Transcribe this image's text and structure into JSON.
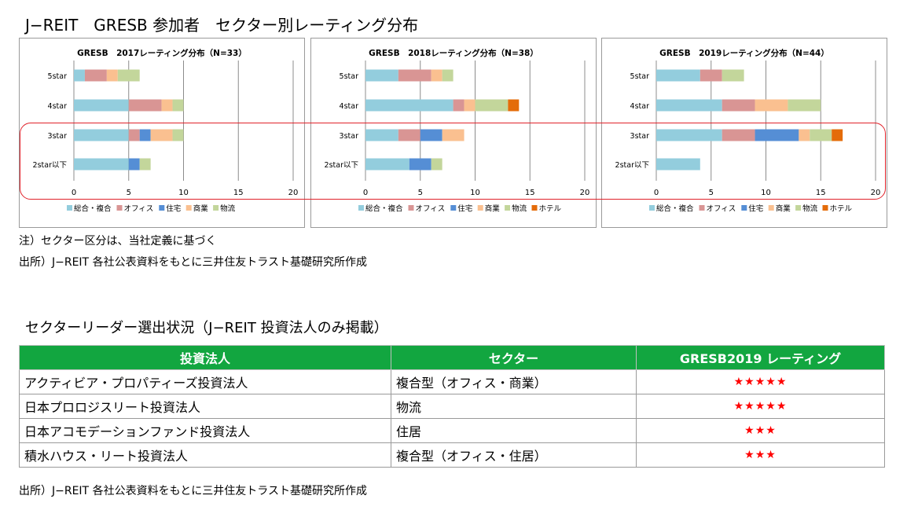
{
  "page": {
    "title": "J−REIT　GRESB 参加者　セクター別レーティング分布",
    "note": "注）セクター区分は、当社定義に基づく",
    "source1": "出所）J−REIT 各社公表資料をもとに三井住友トラスト基礎研究所作成",
    "table_title": "セクターリーダー選出状況（J−REIT 投資法人のみ掲載）",
    "source2": "出所）J−REIT 各社公表資料をもとに三井住友トラスト基礎研究所作成"
  },
  "colors": {
    "総合・複合": "#93cddd",
    "オフィス": "#d99594",
    "住宅": "#558ed5",
    "商業": "#fac090",
    "物流": "#c3d69b",
    "ホテル": "#e46c0a"
  },
  "chart_data": [
    {
      "type": "bar",
      "orientation": "horizontal",
      "stacked": true,
      "title": "GRESB　2017レーティング分布（N=33）",
      "categories": [
        "5star",
        "4star",
        "3star",
        "2star以下"
      ],
      "xlim": [
        0,
        20
      ],
      "xticks": [
        0,
        5,
        10,
        15,
        20
      ],
      "grid": true,
      "legend": "bottom",
      "series": [
        {
          "name": "総合・複合",
          "values": [
            1,
            5,
            5,
            5
          ]
        },
        {
          "name": "オフィス",
          "values": [
            2,
            3,
            1,
            0
          ]
        },
        {
          "name": "住宅",
          "values": [
            0,
            0,
            1,
            1
          ]
        },
        {
          "name": "商業",
          "values": [
            1,
            1,
            2,
            0
          ]
        },
        {
          "name": "物流",
          "values": [
            2,
            1,
            1,
            1
          ]
        }
      ]
    },
    {
      "type": "bar",
      "orientation": "horizontal",
      "stacked": true,
      "title": "GRESB　2018レーティング分布（N=38）",
      "categories": [
        "5star",
        "4star",
        "3star",
        "2star以下"
      ],
      "xlim": [
        0,
        20
      ],
      "xticks": [
        0,
        5,
        10,
        15,
        20
      ],
      "grid": true,
      "legend": "bottom",
      "series": [
        {
          "name": "総合・複合",
          "values": [
            3,
            8,
            3,
            4
          ]
        },
        {
          "name": "オフィス",
          "values": [
            3,
            1,
            2,
            0
          ]
        },
        {
          "name": "住宅",
          "values": [
            0,
            0,
            2,
            2
          ]
        },
        {
          "name": "商業",
          "values": [
            1,
            1,
            2,
            0
          ]
        },
        {
          "name": "物流",
          "values": [
            1,
            3,
            0,
            1
          ]
        },
        {
          "name": "ホテル",
          "values": [
            0,
            1,
            0,
            0
          ]
        }
      ]
    },
    {
      "type": "bar",
      "orientation": "horizontal",
      "stacked": true,
      "title": "GRESB　2019レーティング分布（N=44）",
      "categories": [
        "5star",
        "4star",
        "3star",
        "2star以下"
      ],
      "xlim": [
        0,
        20
      ],
      "xticks": [
        0,
        5,
        10,
        15,
        20
      ],
      "grid": true,
      "legend": "bottom",
      "series": [
        {
          "name": "総合・複合",
          "values": [
            4,
            6,
            6,
            4
          ]
        },
        {
          "name": "オフィス",
          "values": [
            2,
            3,
            3,
            0
          ]
        },
        {
          "name": "住宅",
          "values": [
            0,
            0,
            4,
            0
          ]
        },
        {
          "name": "商業",
          "values": [
            0,
            3,
            1,
            0
          ]
        },
        {
          "name": "物流",
          "values": [
            2,
            3,
            2,
            0
          ]
        },
        {
          "name": "ホテル",
          "values": [
            0,
            0,
            1,
            0
          ]
        }
      ]
    }
  ],
  "table": {
    "headers": [
      "投資法人",
      "セクター",
      "GRESB2019 レーティング"
    ],
    "rows": [
      {
        "name": "アクティビア・プロパティーズ投資法人",
        "sector": "複合型（オフィス・商業）",
        "stars": "★★★★★"
      },
      {
        "name": "日本プロロジスリート投資法人",
        "sector": "物流",
        "stars": "★★★★★"
      },
      {
        "name": "日本アコモデーションファンド投資法人",
        "sector": "住居",
        "stars": "★★★"
      },
      {
        "name": "積水ハウス・リート投資法人",
        "sector": "複合型（オフィス・住居）",
        "stars": "★★★"
      }
    ]
  }
}
